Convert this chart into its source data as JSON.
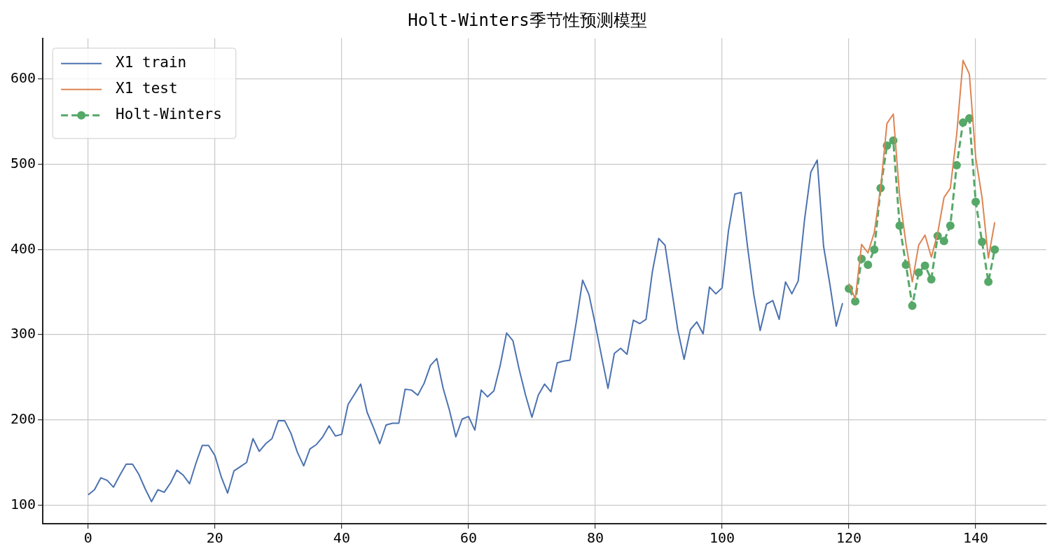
{
  "chart_data": {
    "type": "line",
    "title": "Holt-Winters季节性预测模型",
    "xlim": [
      -7.15,
      151.15
    ],
    "ylim": [
      78.1,
      647.9
    ],
    "xticks": [
      0,
      20,
      40,
      60,
      80,
      100,
      120,
      140
    ],
    "yticks": [
      100,
      200,
      300,
      400,
      500,
      600
    ],
    "grid": true,
    "legend": "top left",
    "series": [
      {
        "name": "X1 train",
        "color": "#4c72b0",
        "marker": "none",
        "line_style": "solid",
        "x": [
          0,
          1,
          2,
          3,
          4,
          5,
          6,
          7,
          8,
          9,
          10,
          11,
          12,
          13,
          14,
          15,
          16,
          17,
          18,
          19,
          20,
          21,
          22,
          23,
          24,
          25,
          26,
          27,
          28,
          29,
          30,
          31,
          32,
          33,
          34,
          35,
          36,
          37,
          38,
          39,
          40,
          41,
          42,
          43,
          44,
          45,
          46,
          47,
          48,
          49,
          50,
          51,
          52,
          53,
          54,
          55,
          56,
          57,
          58,
          59,
          60,
          61,
          62,
          63,
          64,
          65,
          66,
          67,
          68,
          69,
          70,
          71,
          72,
          73,
          74,
          75,
          76,
          77,
          78,
          79,
          80,
          81,
          82,
          83,
          84,
          85,
          86,
          87,
          88,
          89,
          90,
          91,
          92,
          93,
          94,
          95,
          96,
          97,
          98,
          99,
          100,
          101,
          102,
          103,
          104,
          105,
          106,
          107,
          108,
          109,
          110,
          111,
          112,
          113,
          114,
          115,
          116,
          117,
          118,
          119
        ],
        "values": [
          112,
          118,
          132,
          129,
          121,
          135,
          148,
          148,
          136,
          119,
          104,
          118,
          115,
          126,
          141,
          135,
          125,
          149,
          170,
          170,
          158,
          133,
          114,
          140,
          145,
          150,
          178,
          163,
          172,
          178,
          199,
          199,
          184,
          162,
          146,
          166,
          171,
          180,
          193,
          181,
          183,
          218,
          230,
          242,
          209,
          191,
          172,
          194,
          196,
          196,
          236,
          235,
          229,
          243,
          264,
          272,
          237,
          211,
          180,
          201,
          204,
          188,
          235,
          227,
          234,
          264,
          302,
          293,
          259,
          229,
          203,
          229,
          242,
          233,
          267,
          269,
          270,
          315,
          364,
          347,
          312,
          274,
          237,
          278,
          284,
          277,
          317,
          313,
          318,
          374,
          413,
          405,
          355,
          306,
          271,
          306,
          315,
          301,
          356,
          348,
          355,
          422,
          465,
          467,
          404,
          347,
          305,
          336,
          340,
          318,
          362,
          348,
          363,
          435,
          491,
          505,
          404,
          359,
          310,
          337
        ]
      },
      {
        "name": "X1 test",
        "color": "#dd8452",
        "marker": "none",
        "line_style": "solid",
        "x": [
          120,
          121,
          122,
          123,
          124,
          125,
          126,
          127,
          128,
          129,
          130,
          131,
          132,
          133,
          134,
          135,
          136,
          137,
          138,
          139,
          140,
          141,
          142,
          143
        ],
        "values": [
          360,
          342,
          406,
          396,
          420,
          472,
          548,
          559,
          463,
          407,
          362,
          405,
          417,
          391,
          419,
          461,
          472,
          535,
          622,
          606,
          508,
          461,
          390,
          432
        ]
      },
      {
        "name": "Holt-Winters",
        "color": "#55a868",
        "marker": "circle",
        "line_style": "dashed",
        "x": [
          120,
          121,
          122,
          123,
          124,
          125,
          126,
          127,
          128,
          129,
          130,
          131,
          132,
          133,
          134,
          135,
          136,
          137,
          138,
          139,
          140,
          141,
          142,
          143
        ],
        "values": [
          354,
          339,
          389,
          382,
          400,
          472,
          522,
          528,
          428,
          382,
          334,
          373,
          381,
          365,
          416,
          410,
          428,
          499,
          549,
          554,
          456,
          409,
          362,
          400
        ]
      }
    ]
  }
}
